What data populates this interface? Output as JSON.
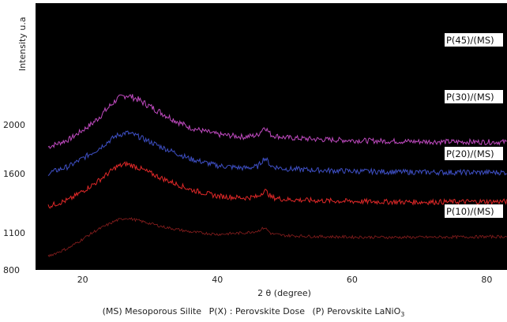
{
  "chart_data": {
    "type": "line",
    "xlabel": "2 θ (degree)",
    "ylabel": "Intensity u.a",
    "xlim": [
      13,
      83
    ],
    "x_ticks": [
      20,
      40,
      60,
      80
    ],
    "y_ticks": [
      800,
      1100,
      1600,
      2000
    ],
    "background": "#000000",
    "grid": false,
    "legend": "none",
    "series": [
      {
        "name": "P(45)/(MS)",
        "color": "#c04ac0",
        "x": [
          13,
          18,
          22,
          25,
          26.5,
          28,
          32,
          36,
          40,
          44,
          46,
          47,
          47.5,
          48,
          50,
          55,
          60,
          65,
          70,
          75,
          83
        ],
        "y": [
          1780,
          1880,
          2030,
          2165,
          2195,
          2170,
          2070,
          1975,
          1920,
          1900,
          1915,
          1985,
          1950,
          1915,
          1895,
          1880,
          1872,
          1866,
          1862,
          1860,
          1858
        ]
      },
      {
        "name": "P(30)/(MS)",
        "color": "#3e4fc4",
        "x": [
          13,
          18,
          22,
          25,
          26.5,
          28,
          32,
          36,
          40,
          44,
          46,
          47,
          47.5,
          48,
          50,
          55,
          60,
          65,
          70,
          75,
          83
        ],
        "y": [
          1570,
          1660,
          1790,
          1910,
          1935,
          1910,
          1810,
          1720,
          1665,
          1645,
          1658,
          1730,
          1700,
          1660,
          1640,
          1628,
          1620,
          1615,
          1612,
          1610,
          1610
        ]
      },
      {
        "name": "P(20)/(MS)",
        "color": "#e02828",
        "x": [
          13,
          18,
          22,
          25,
          26.5,
          28,
          32,
          36,
          40,
          44,
          46,
          47,
          47.5,
          48,
          50,
          55,
          60,
          65,
          70,
          75,
          83
        ],
        "y": [
          1290,
          1380,
          1525,
          1655,
          1680,
          1655,
          1555,
          1465,
          1410,
          1395,
          1405,
          1460,
          1435,
          1400,
          1382,
          1372,
          1366,
          1362,
          1360,
          1362,
          1365
        ]
      },
      {
        "name": "P(10)/(MS)",
        "color": "#8a1e1e",
        "x": [
          13,
          18,
          22,
          25,
          26.5,
          28,
          32,
          36,
          40,
          44,
          46,
          47,
          47.5,
          48,
          50,
          55,
          60,
          65,
          70,
          75,
          83
        ],
        "y": [
          870,
          980,
          1120,
          1205,
          1225,
          1208,
          1150,
          1108,
          1088,
          1100,
          1115,
          1145,
          1120,
          1092,
          1078,
          1070,
          1066,
          1064,
          1064,
          1066,
          1070
        ]
      }
    ],
    "footer": {
      "part1": "(MS) Mesoporous Silite",
      "part2": "P(X) : Perovskite Dose",
      "part3_prefix": "(P) Perovskite LaNiO",
      "part3_sub": "3"
    }
  }
}
